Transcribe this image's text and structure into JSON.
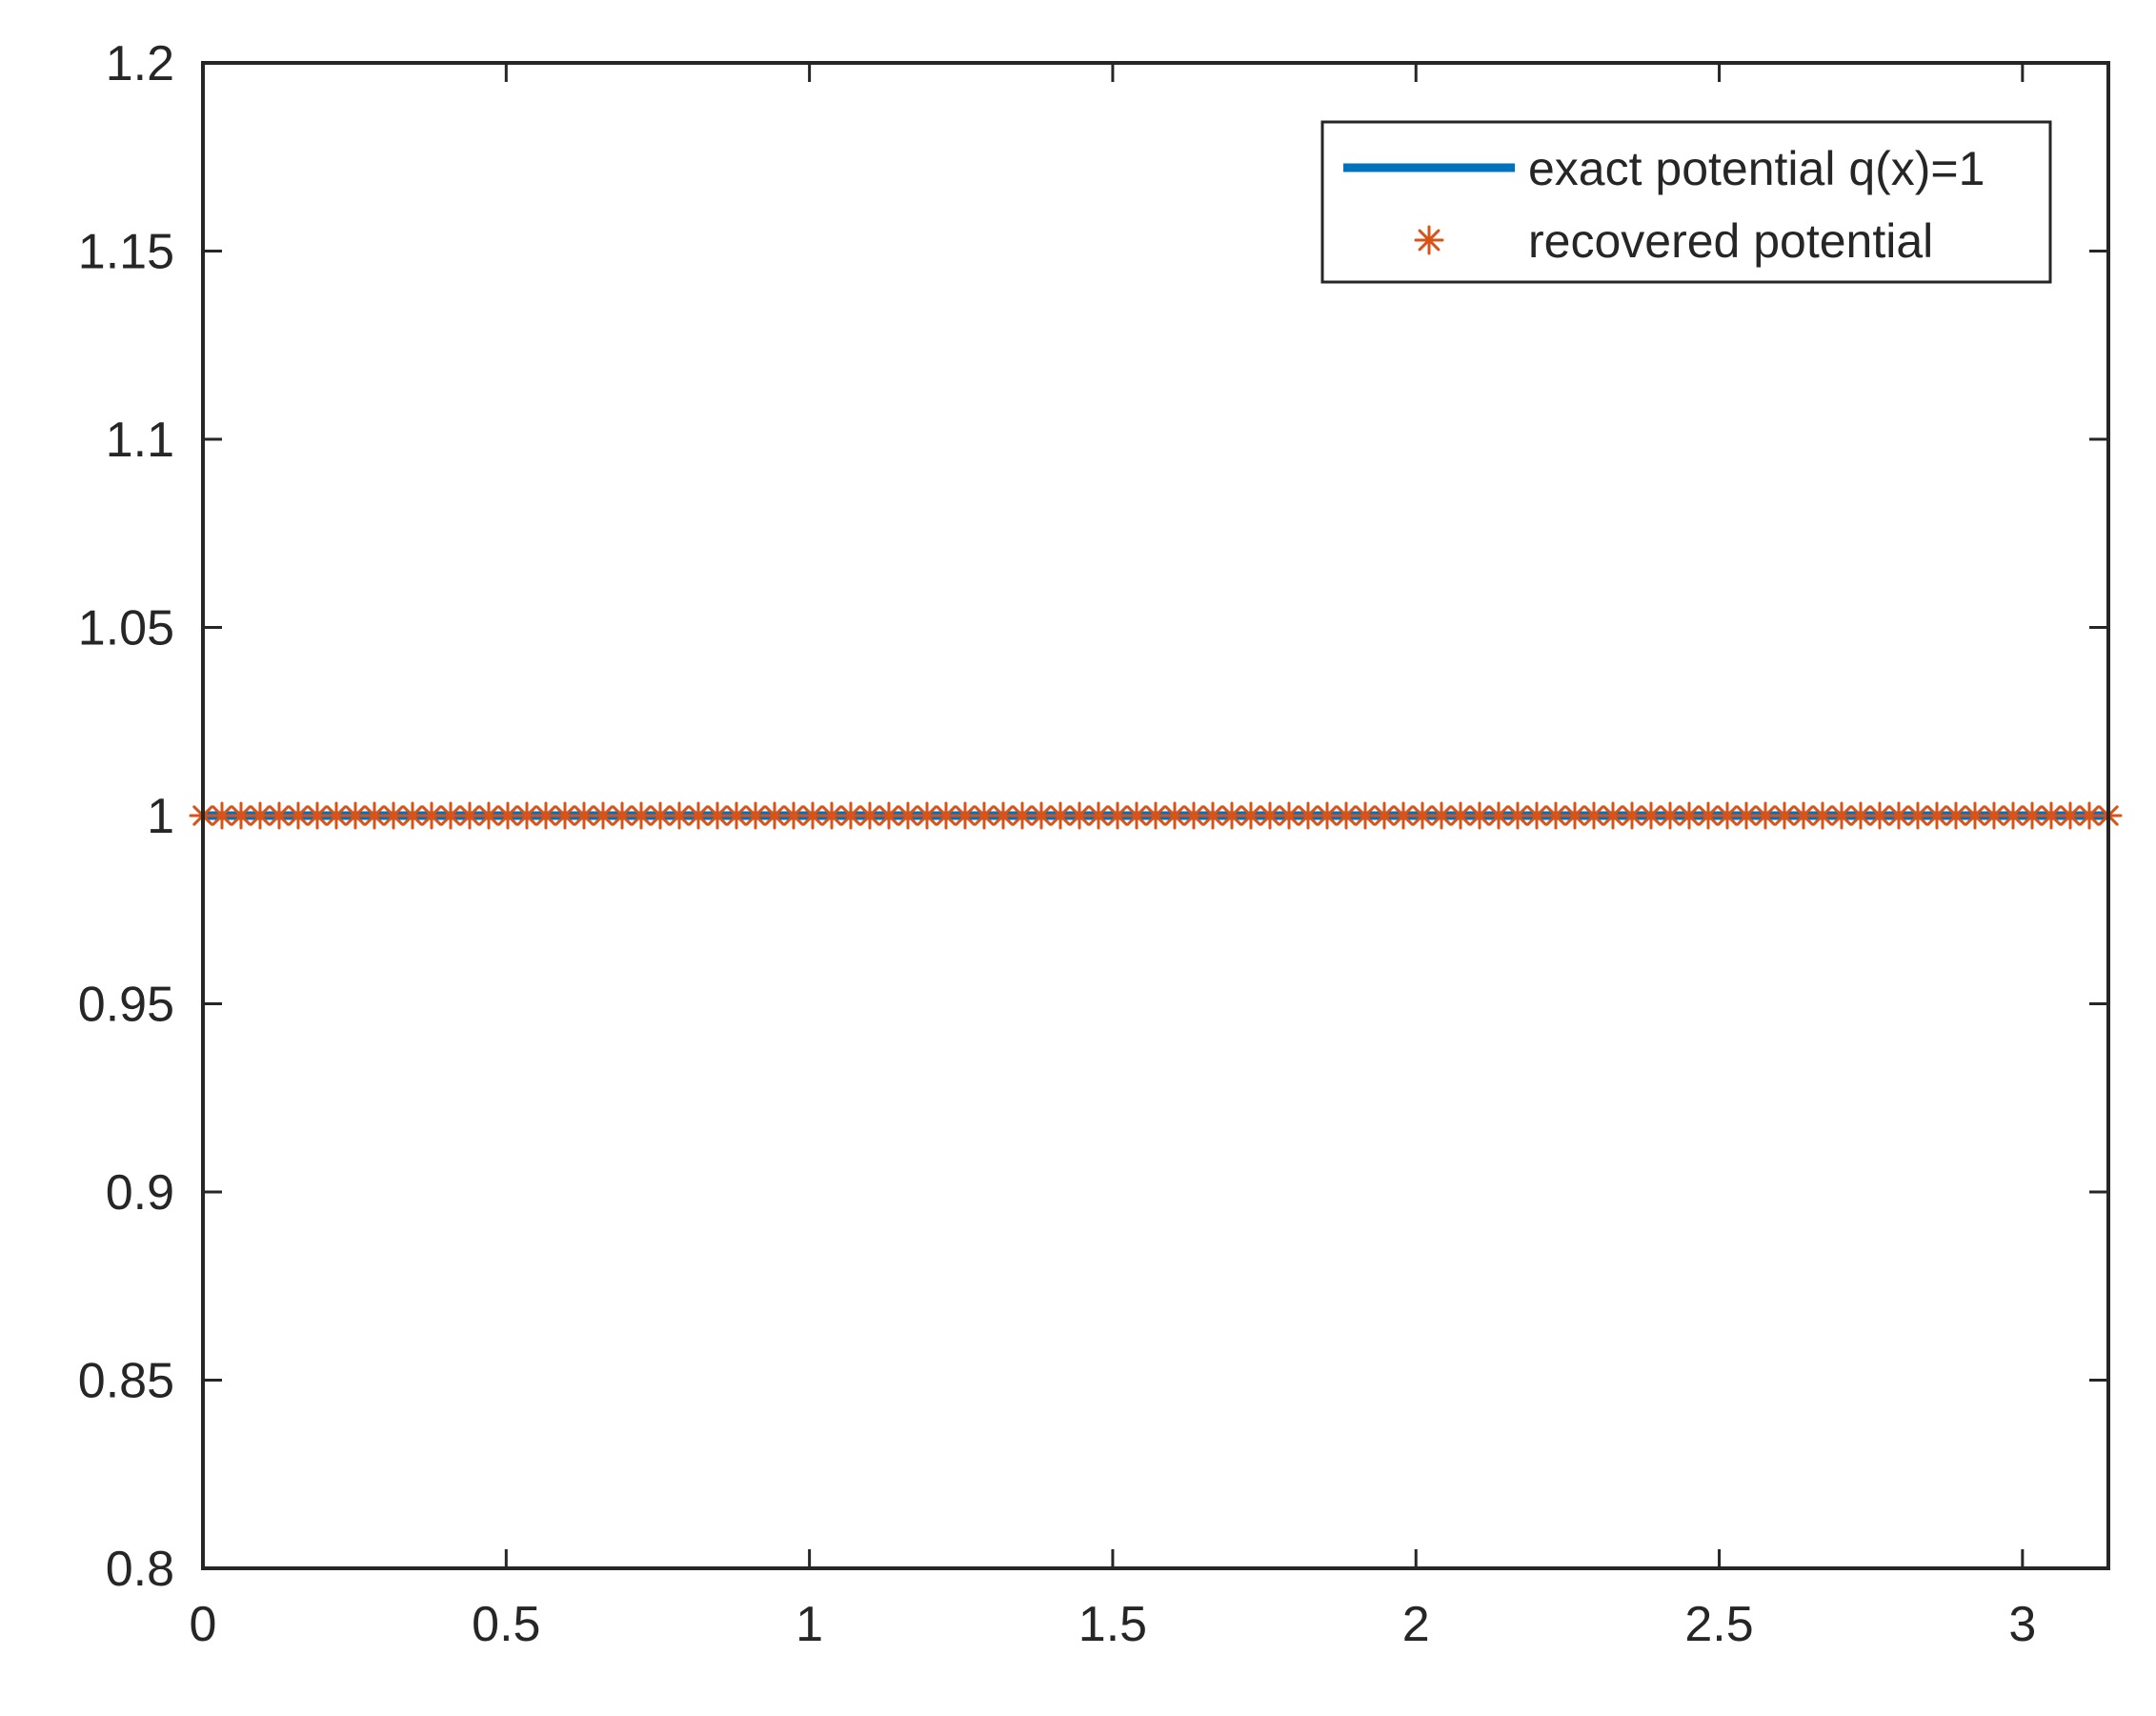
{
  "chart_data": {
    "type": "line",
    "title": "",
    "xlabel": "",
    "ylabel": "",
    "xlim": [
      0,
      3.14159
    ],
    "ylim": [
      0.8,
      1.2
    ],
    "x_ticks": [
      "0",
      "0.5",
      "1",
      "1.5",
      "2",
      "2.5",
      "3"
    ],
    "y_ticks": [
      "0.8",
      "0.85",
      "0.9",
      "0.95",
      "1",
      "1.05",
      "1.1",
      "1.15",
      "1.2"
    ],
    "grid": false,
    "legend_position": "top-right",
    "series": [
      {
        "name": "exact potential q(x)=1",
        "style": "solid line",
        "color": "#0072BD",
        "x": [
          0,
          3.14159
        ],
        "y": [
          1,
          1
        ]
      },
      {
        "name": "recovered potential",
        "style": "asterisk markers",
        "color": "#D95319",
        "x_range": [
          0,
          3.14159
        ],
        "point_count": 101,
        "y": 1
      }
    ]
  }
}
